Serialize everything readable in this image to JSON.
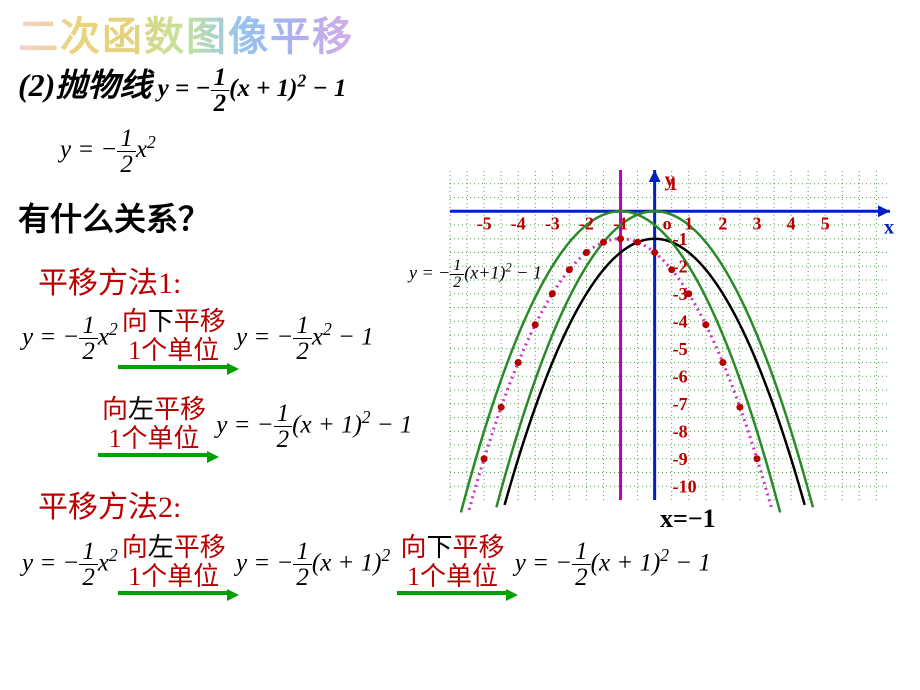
{
  "title_rainbow": "二次函数图像平移",
  "line_prefix": "(2)抛物线",
  "eq_main": {
    "lhs": "y",
    "coef_num": "1",
    "coef_den": "2",
    "xpart": "(x + 1)",
    "tail": " − 1"
  },
  "eq_base": {
    "lhs": "y",
    "coef_num": "1",
    "coef_den": "2",
    "xpart": "x"
  },
  "question": "有什么关系？",
  "method1_label": "平移方法1:",
  "method2_label": "平移方法2:",
  "ann_down": {
    "dir_word": "下",
    "pre": "向",
    "post": "平移",
    "amount": "1个单位"
  },
  "ann_left": {
    "dir_word": "左",
    "pre": "向",
    "post": "平移",
    "amount": "1个单位"
  },
  "eq_A": {
    "lhs": "y",
    "coef_num": "1",
    "coef_den": "2",
    "xpart": "x",
    "tail": ""
  },
  "eq_B": {
    "lhs": "y",
    "coef_num": "1",
    "coef_den": "2",
    "xpart": "x",
    "tail": " − 1"
  },
  "eq_C": {
    "lhs": "y",
    "coef_num": "1",
    "coef_den": "2",
    "xpart": "(x + 1)",
    "tail": " − 1"
  },
  "eq_D": {
    "lhs": "y",
    "coef_num": "1",
    "coef_den": "2",
    "xpart": "(x + 1)",
    "tail": ""
  },
  "chart": {
    "x_ticks": [
      -5,
      -4,
      -3,
      -2,
      -1,
      1,
      2,
      3,
      4,
      5
    ],
    "y_ticks": [
      1,
      -1,
      -2,
      -3,
      -4,
      -5,
      -6,
      -7,
      -8,
      -9,
      -10
    ],
    "x_axis_label": "x",
    "y_axis_label": "y",
    "origin_label": "o",
    "vline_label": "x=−1",
    "inline_eq": "y = −½(x+1)² − 1",
    "xlim": [
      -6,
      6.9
    ],
    "ylim": [
      -10.5,
      1.5
    ],
    "axis_color": "#0020c0",
    "grid_color": "#2a8a2a",
    "grid_dash": "1,3",
    "vline_color": "#c000c0",
    "curves": [
      {
        "color": "#2a8a2a",
        "width": 2.5,
        "dash": "",
        "a": -0.5,
        "h": 0,
        "k": 0
      },
      {
        "color": "#000000",
        "width": 2.5,
        "dash": "",
        "a": -0.5,
        "h": 0,
        "k": -1
      },
      {
        "color": "#2a8a2a",
        "width": 2.5,
        "dash": "",
        "a": -0.5,
        "h": -1,
        "k": 0
      },
      {
        "color": "#d030c8",
        "width": 3.0,
        "dash": "2,4",
        "a": -0.5,
        "h": -1,
        "k": -1
      }
    ],
    "points": {
      "fill": "#b80000",
      "r": 3.5,
      "coords": [
        [
          -5,
          -9
        ],
        [
          -4.5,
          -7.125
        ],
        [
          -4,
          -5.5
        ],
        [
          -3.5,
          -4.125
        ],
        [
          -3,
          -3
        ],
        [
          -2.5,
          -2.125
        ],
        [
          -2,
          -1.5
        ],
        [
          -1.5,
          -1.125
        ],
        [
          -1,
          -1
        ],
        [
          -0.5,
          -1.125
        ],
        [
          0,
          -1.5
        ],
        [
          0.5,
          -2.125
        ],
        [
          1,
          -3
        ],
        [
          1.5,
          -4.125
        ],
        [
          2,
          -5.5
        ],
        [
          2.5,
          -7.125
        ],
        [
          3,
          -9
        ]
      ]
    },
    "tick_color": "#b80000",
    "label_fontsize": 18
  }
}
